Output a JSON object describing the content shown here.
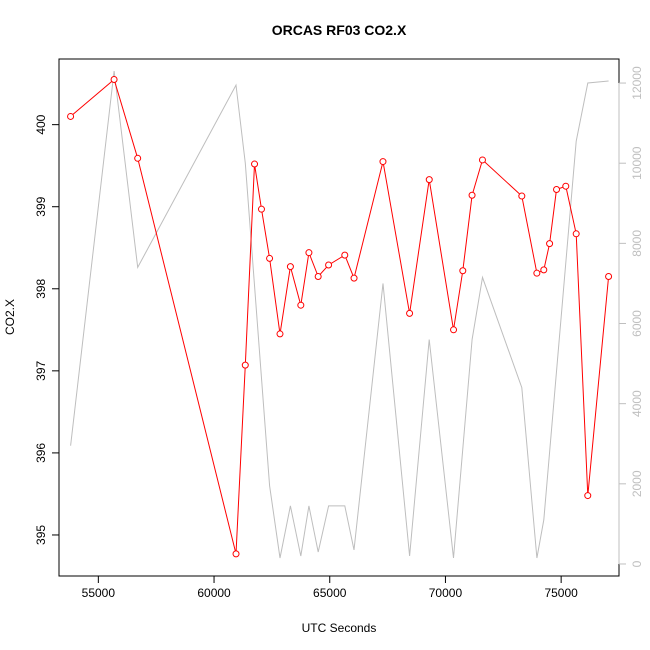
{
  "chart_data": {
    "type": "line",
    "title": "ORCAS RF03 CO2.X",
    "xlabel": "UTC Seconds",
    "ylabel": "CO2.X",
    "xlim": [
      53300,
      77500
    ],
    "ylim": [
      394.5,
      400.8
    ],
    "y2lim": [
      -300,
      12600
    ],
    "x_ticks": [
      55000,
      60000,
      65000,
      70000,
      75000
    ],
    "y_ticks": [
      395,
      396,
      397,
      398,
      399,
      400
    ],
    "y2_ticks": [
      0,
      2000,
      4000,
      6000,
      8000,
      10000,
      12000
    ],
    "grid": false,
    "series": [
      {
        "axis": "left",
        "color": "#ff0000",
        "marker": "open-circle",
        "x": [
          53800,
          55680,
          56700,
          60950,
          61350,
          61750,
          62050,
          62400,
          62850,
          63300,
          63750,
          64100,
          64500,
          64950,
          65650,
          66050,
          67300,
          68450,
          69300,
          70350,
          70750,
          71150,
          71600,
          73300,
          73950,
          74250,
          74500,
          74800,
          75200,
          75650,
          76150,
          77050
        ],
        "y": [
          400.1,
          400.55,
          399.59,
          394.77,
          397.07,
          399.52,
          398.97,
          398.37,
          397.45,
          398.27,
          397.8,
          398.44,
          398.15,
          398.29,
          398.41,
          398.13,
          399.55,
          397.7,
          399.33,
          397.5,
          398.22,
          399.14,
          399.57,
          399.13,
          398.19,
          398.23,
          398.55,
          399.21,
          399.25,
          398.67,
          395.48,
          398.15
        ]
      },
      {
        "axis": "right",
        "color": "#bebebe",
        "marker": "none",
        "x": [
          53800,
          55680,
          56700,
          60950,
          61350,
          62400,
          62850,
          63300,
          63750,
          64100,
          64500,
          64950,
          65650,
          66050,
          67300,
          68450,
          69300,
          70350,
          71150,
          71600,
          73300,
          73950,
          74250,
          75650,
          76150,
          77050
        ],
        "y": [
          2950,
          12300,
          7400,
          11950,
          10000,
          1950,
          150,
          1450,
          200,
          1450,
          300,
          1450,
          1450,
          350,
          7000,
          200,
          5600,
          150,
          5600,
          7150,
          4400,
          150,
          1100,
          10550,
          12000,
          12050
        ]
      }
    ]
  }
}
